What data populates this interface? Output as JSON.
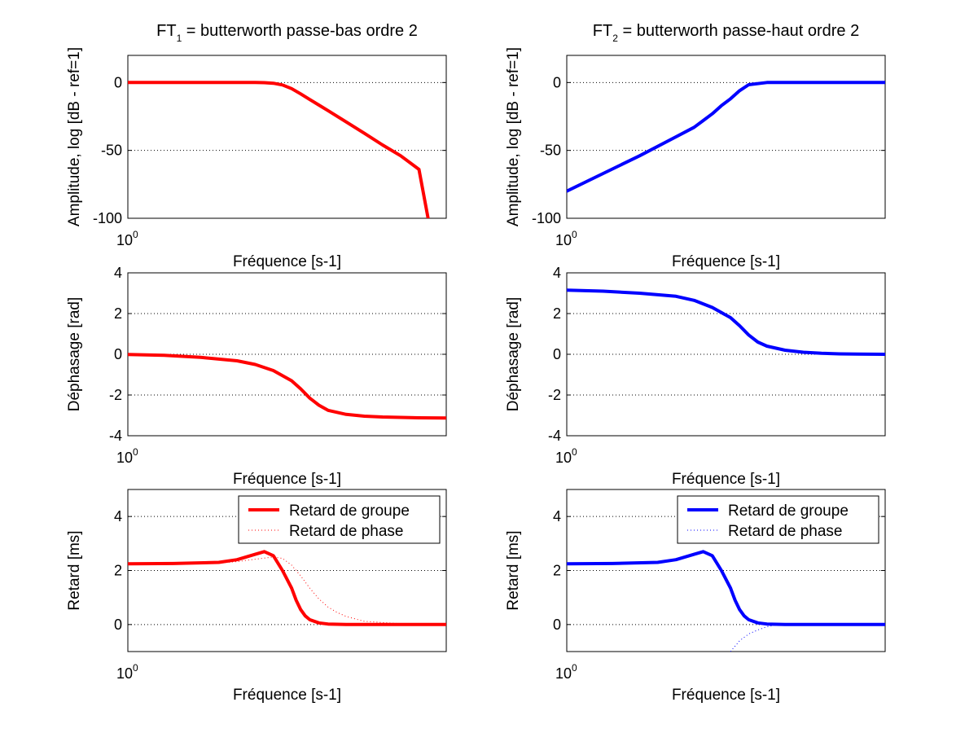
{
  "figure": {
    "background": "#ffffff"
  },
  "chart_data": [
    {
      "id": "amp1",
      "type": "line",
      "title": {
        "prefix": "FT",
        "sub": "1",
        "suffix": " = butterworth passe-bas ordre 2"
      },
      "xlabel": "Fréquence [s-1]",
      "ylabel": "Amplitude, log [dB - ref=1]",
      "xtick": {
        "base": "10",
        "exp": "0"
      },
      "xscale": "log",
      "xlim": [
        -2.0,
        1.5
      ],
      "ylim": [
        -100,
        20
      ],
      "yticks": [
        0,
        -50,
        -100
      ],
      "ygrid": true,
      "series": [
        {
          "name": "Amplitude",
          "color": "#ff0000",
          "width": 4,
          "style": "solid",
          "x": [
            -2.0,
            -1.5,
            -1.0,
            -0.8,
            -0.6,
            -0.5,
            -0.4,
            -0.3,
            -0.2,
            -0.1,
            0,
            0.1,
            0.2,
            0.4,
            0.6,
            0.8,
            1.0,
            1.2,
            1.3
          ],
          "y": [
            0,
            0,
            0,
            0,
            0,
            -0.1,
            -0.5,
            -1.8,
            -4.5,
            -8.4,
            -12.5,
            -16.6,
            -20.7,
            -29,
            -37.4,
            -46,
            -54,
            -64,
            -100
          ]
        }
      ]
    },
    {
      "id": "amp2",
      "type": "line",
      "title": {
        "prefix": "FT",
        "sub": "2",
        "suffix": " = butterworth passe-haut ordre 2"
      },
      "xlabel": "Fréquence [s-1]",
      "ylabel": "Amplitude, log [dB - ref=1]",
      "xtick": {
        "base": "10",
        "exp": "0"
      },
      "xscale": "log",
      "xlim": [
        -2.0,
        1.5
      ],
      "ylim": [
        -100,
        20
      ],
      "yticks": [
        0,
        -50,
        -100
      ],
      "ygrid": true,
      "series": [
        {
          "name": "Amplitude",
          "color": "#0000ff",
          "width": 4,
          "style": "solid",
          "x": [
            -2.0,
            -1.6,
            -1.2,
            -0.8,
            -0.6,
            -0.5,
            -0.4,
            -0.3,
            -0.2,
            -0.1,
            0,
            0.2,
            0.5,
            1.0,
            1.5
          ],
          "y": [
            -80,
            -67,
            -54,
            -40,
            -33,
            -28,
            -23,
            -17,
            -12,
            -6,
            -1.6,
            0,
            0,
            0,
            0
          ]
        }
      ]
    },
    {
      "id": "ph1",
      "type": "line",
      "title": null,
      "xlabel": "Fréquence [s-1]",
      "ylabel": "Déphasage [rad]",
      "xtick": {
        "base": "10",
        "exp": "0"
      },
      "xscale": "log",
      "xlim": [
        -2.0,
        1.5
      ],
      "ylim": [
        -4,
        4
      ],
      "yticks": [
        4,
        2,
        0,
        -2,
        -4
      ],
      "ygrid": true,
      "series": [
        {
          "name": "Déphasage",
          "color": "#ff0000",
          "width": 4,
          "style": "solid",
          "x": [
            -2.0,
            -1.6,
            -1.2,
            -0.8,
            -0.6,
            -0.4,
            -0.2,
            -0.1,
            0,
            0.1,
            0.2,
            0.4,
            0.6,
            0.8,
            1.0,
            1.2,
            1.5
          ],
          "y": [
            -0.01,
            -0.05,
            -0.15,
            -0.32,
            -0.5,
            -0.8,
            -1.3,
            -1.7,
            -2.15,
            -2.5,
            -2.75,
            -2.95,
            -3.04,
            -3.08,
            -3.1,
            -3.12,
            -3.13
          ]
        }
      ]
    },
    {
      "id": "ph2",
      "type": "line",
      "title": null,
      "xlabel": "Fréquence [s-1]",
      "ylabel": "Déphasage [rad]",
      "xtick": {
        "base": "10",
        "exp": "0"
      },
      "xscale": "log",
      "xlim": [
        -2.0,
        1.5
      ],
      "ylim": [
        -4,
        4
      ],
      "yticks": [
        4,
        2,
        0,
        -2,
        -4
      ],
      "ygrid": true,
      "series": [
        {
          "name": "Déphasage",
          "color": "#0000ff",
          "width": 4,
          "style": "solid",
          "x": [
            -2.0,
            -1.6,
            -1.2,
            -0.8,
            -0.6,
            -0.4,
            -0.2,
            -0.1,
            0,
            0.1,
            0.2,
            0.4,
            0.6,
            0.8,
            1.0,
            1.2,
            1.5
          ],
          "y": [
            3.15,
            3.1,
            3.0,
            2.85,
            2.65,
            2.3,
            1.8,
            1.4,
            0.95,
            0.6,
            0.4,
            0.2,
            0.1,
            0.05,
            0.02,
            0.01,
            0.0
          ]
        }
      ]
    },
    {
      "id": "ret1",
      "type": "line",
      "title": null,
      "xlabel": "Fréquence [s-1]",
      "ylabel": "Retard [ms]",
      "xtick": {
        "base": "10",
        "exp": "0"
      },
      "xscale": "log",
      "xlim": [
        -2.0,
        1.5
      ],
      "ylim": [
        -1,
        5
      ],
      "yticks": [
        4,
        2,
        0
      ],
      "ygrid": true,
      "legend": {
        "position": "top-right",
        "entries": [
          "Retard de groupe",
          "Retard de phase"
        ]
      },
      "series": [
        {
          "name": "Retard de groupe",
          "color": "#ff0000",
          "width": 4,
          "style": "solid",
          "x": [
            -2.0,
            -1.5,
            -1.0,
            -0.8,
            -0.6,
            -0.5,
            -0.4,
            -0.3,
            -0.2,
            -0.15,
            -0.1,
            -0.05,
            0,
            0.1,
            0.2,
            0.4,
            0.6,
            1.0,
            1.5
          ],
          "y": [
            2.25,
            2.26,
            2.3,
            2.4,
            2.6,
            2.7,
            2.55,
            2.0,
            1.35,
            0.9,
            0.55,
            0.32,
            0.18,
            0.06,
            0.02,
            0.0,
            0.0,
            0.0,
            0.0
          ]
        },
        {
          "name": "Retard de phase",
          "color": "#ff0000",
          "width": 1,
          "style": "dotted",
          "x": [
            -2.0,
            -1.5,
            -1.0,
            -0.8,
            -0.6,
            -0.4,
            -0.3,
            -0.2,
            -0.1,
            0,
            0.1,
            0.2,
            0.3,
            0.4,
            0.6,
            1.0,
            1.5
          ],
          "y": [
            2.24,
            2.25,
            2.28,
            2.33,
            2.42,
            2.5,
            2.45,
            2.2,
            1.8,
            1.35,
            0.95,
            0.65,
            0.45,
            0.3,
            0.12,
            0.03,
            0.0
          ]
        }
      ]
    },
    {
      "id": "ret2",
      "type": "line",
      "title": null,
      "xlabel": "Fréquence [s-1]",
      "ylabel": "Retard [ms]",
      "xtick": {
        "base": "10",
        "exp": "0"
      },
      "xscale": "log",
      "xlim": [
        -2.0,
        1.5
      ],
      "ylim": [
        -1,
        5
      ],
      "yticks": [
        4,
        2,
        0
      ],
      "ygrid": true,
      "legend": {
        "position": "top-right",
        "entries": [
          "Retard de groupe",
          "Retard de phase"
        ]
      },
      "series": [
        {
          "name": "Retard de groupe",
          "color": "#0000ff",
          "width": 4,
          "style": "solid",
          "x": [
            -2.0,
            -1.5,
            -1.0,
            -0.8,
            -0.6,
            -0.5,
            -0.4,
            -0.3,
            -0.2,
            -0.15,
            -0.1,
            -0.05,
            0,
            0.1,
            0.2,
            0.4,
            0.6,
            1.0,
            1.5
          ],
          "y": [
            2.25,
            2.26,
            2.3,
            2.4,
            2.6,
            2.7,
            2.55,
            2.0,
            1.35,
            0.9,
            0.55,
            0.32,
            0.18,
            0.06,
            0.02,
            0.0,
            0.0,
            0.0,
            0.0
          ]
        },
        {
          "name": "Retard de phase",
          "color": "#0000ff",
          "width": 1,
          "style": "dotted",
          "x": [
            -0.2,
            -0.1,
            0,
            0.1,
            0.2,
            0.3,
            0.4,
            0.6,
            1.0
          ],
          "y": [
            -1.0,
            -0.6,
            -0.35,
            -0.2,
            -0.08,
            -0.02,
            0.0,
            0.0,
            0.0
          ]
        }
      ]
    }
  ]
}
